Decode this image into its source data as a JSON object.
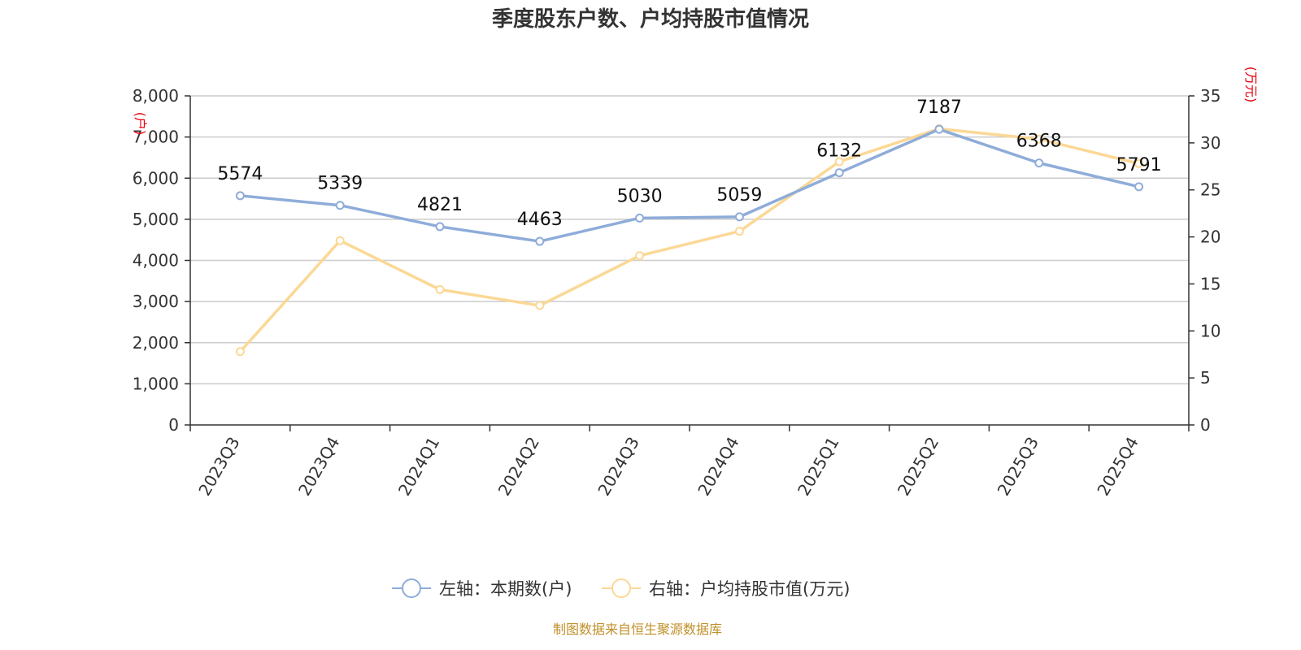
{
  "chart_data": {
    "type": "line",
    "title": "季度股东户数、户均持股市值情况",
    "categories": [
      "2023Q3",
      "2023Q4",
      "2024Q1",
      "2024Q2",
      "2024Q3",
      "2024Q4",
      "2025Q1",
      "2025Q2",
      "2025Q3",
      "2025Q4"
    ],
    "left_axis": {
      "unit": "(户)",
      "ylim": [
        0,
        8000
      ],
      "ticks": [
        "0",
        "1,000",
        "2,000",
        "3,000",
        "4,000",
        "5,000",
        "6,000",
        "7,000",
        "8,000"
      ]
    },
    "right_axis": {
      "unit": "(万元)",
      "ylim": [
        0,
        35
      ],
      "ticks": [
        "0",
        "5",
        "10",
        "15",
        "20",
        "25",
        "30",
        "35"
      ]
    },
    "series": [
      {
        "name": "左轴：本期数(户)",
        "axis": "left",
        "color": "#8eacd9",
        "values": [
          5574,
          5339,
          4821,
          4463,
          5030,
          5059,
          6132,
          7187,
          6368,
          5791
        ],
        "labels": [
          "5574",
          "5339",
          "4821",
          "4463",
          "5030",
          "5059",
          "6132",
          "7187",
          "6368",
          "5791"
        ]
      },
      {
        "name": "右轴：户均持股市值(万元)",
        "axis": "right",
        "color": "#fbd895",
        "values": [
          7.8,
          19.6,
          14.4,
          12.7,
          18.0,
          20.6,
          28.0,
          31.5,
          30.4,
          27.8
        ]
      }
    ],
    "legend_position": "bottom",
    "grid": true
  },
  "source": "制图数据来自恒生聚源数据库"
}
